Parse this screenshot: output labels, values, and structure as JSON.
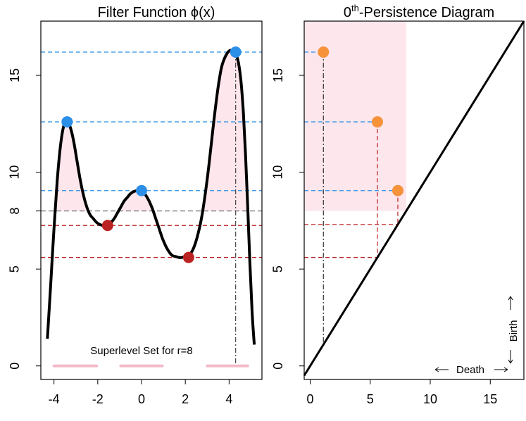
{
  "chart_data": [
    {
      "type": "line",
      "title_prefix": "Filter Function ",
      "title_symbol": "ϕ",
      "title_suffix": "(x)",
      "xlim": [
        -4.6,
        5.5
      ],
      "ylim": [
        -0.7,
        17.8
      ],
      "x_ticks": [
        -4,
        -2,
        0,
        2,
        4
      ],
      "x_tick_labels": [
        "-4",
        "-2",
        "0",
        "2",
        "4"
      ],
      "y_ticks": [
        0,
        5,
        8,
        10,
        15
      ],
      "y_tick_labels": [
        "0",
        "5",
        "8",
        "10",
        "15"
      ],
      "curve": {
        "x": [
          -4.3,
          -4.15,
          -4.0,
          -3.85,
          -3.7,
          -3.55,
          -3.4,
          -3.25,
          -3.1,
          -2.95,
          -2.8,
          -2.65,
          -2.5,
          -2.35,
          -2.2,
          -2.05,
          -1.9,
          -1.75,
          -1.6,
          -1.5,
          -1.4,
          -1.25,
          -1.1,
          -0.95,
          -0.8,
          -0.65,
          -0.5,
          -0.35,
          -0.2,
          -0.05,
          0.05,
          0.2,
          0.35,
          0.5,
          0.65,
          0.8,
          0.95,
          1.1,
          1.25,
          1.4,
          1.55,
          1.7,
          1.85,
          2.0,
          2.15,
          2.3,
          2.45,
          2.6,
          2.75,
          2.9,
          3.05,
          3.2,
          3.35,
          3.5,
          3.65,
          3.8,
          3.95,
          4.1,
          4.25,
          4.35,
          4.45,
          4.55,
          4.65,
          4.75,
          4.85,
          4.95,
          5.05,
          5.15
        ],
        "y": [
          1.4,
          4.2,
          7.1,
          9.6,
          11.4,
          12.4,
          12.6,
          12.3,
          11.6,
          10.6,
          9.6,
          8.8,
          8.2,
          7.8,
          7.6,
          7.4,
          7.3,
          7.25,
          7.25,
          7.3,
          7.4,
          7.6,
          7.9,
          8.2,
          8.5,
          8.7,
          8.9,
          9.0,
          9.05,
          9.05,
          9.0,
          8.8,
          8.5,
          8.1,
          7.6,
          7.1,
          6.6,
          6.2,
          5.9,
          5.7,
          5.65,
          5.6,
          5.6,
          5.65,
          5.7,
          5.9,
          6.3,
          6.9,
          7.7,
          8.8,
          10.1,
          11.6,
          13.1,
          14.4,
          15.4,
          15.9,
          16.2,
          16.3,
          16.2,
          16.0,
          15.5,
          14.6,
          13.1,
          10.9,
          8.2,
          5.3,
          2.8,
          1.1
        ]
      },
      "maxima": [
        {
          "x": -3.4,
          "y": 12.6
        },
        {
          "x": 0.0,
          "y": 9.05
        },
        {
          "x": 4.3,
          "y": 16.2
        }
      ],
      "minima": [
        {
          "x": -1.55,
          "y": 7.25
        },
        {
          "x": 2.15,
          "y": 5.6
        }
      ],
      "level_line": 8,
      "vertical_dashdot_x": 4.3,
      "superlevel_segments": [
        [
          -4.0,
          -2.05
        ],
        [
          -0.95,
          0.95
        ],
        [
          3.0,
          4.85
        ]
      ],
      "annotation": "Superlevel Set for r=8",
      "colors": {
        "maxima": "#2b8fe8",
        "minima": "#bb2222",
        "shade": "#fde6ec",
        "segments": "#f4b9c9",
        "level": "#777777",
        "curve": "#000000"
      }
    },
    {
      "type": "scatter",
      "title_base": "0",
      "title_superscript": "th",
      "title_rest": "-Persistence Diagram",
      "xlim": [
        -0.5,
        17.8
      ],
      "ylim": [
        -0.7,
        17.8
      ],
      "x_ticks": [
        0,
        5,
        10,
        15
      ],
      "x_tick_labels": [
        "0",
        "5",
        "10",
        "15"
      ],
      "y_ticks": [
        0,
        5,
        10,
        15
      ],
      "y_tick_labels": [
        "0",
        "5",
        "10",
        "15"
      ],
      "points": [
        {
          "death": 1.1,
          "birth": 16.2
        },
        {
          "death": 5.6,
          "birth": 12.6
        },
        {
          "death": 7.3,
          "birth": 9.05
        }
      ],
      "shaded_region": {
        "x": [
          -0.5,
          8
        ],
        "y": [
          8,
          17.8
        ]
      },
      "diagonal": true,
      "xlabel": "Death",
      "ylabel": "Birth",
      "colors": {
        "points": "#f5923a",
        "shade": "#fde6ec",
        "blue_dash": "#2b8fe8",
        "red_dash": "#bb2222"
      }
    }
  ]
}
